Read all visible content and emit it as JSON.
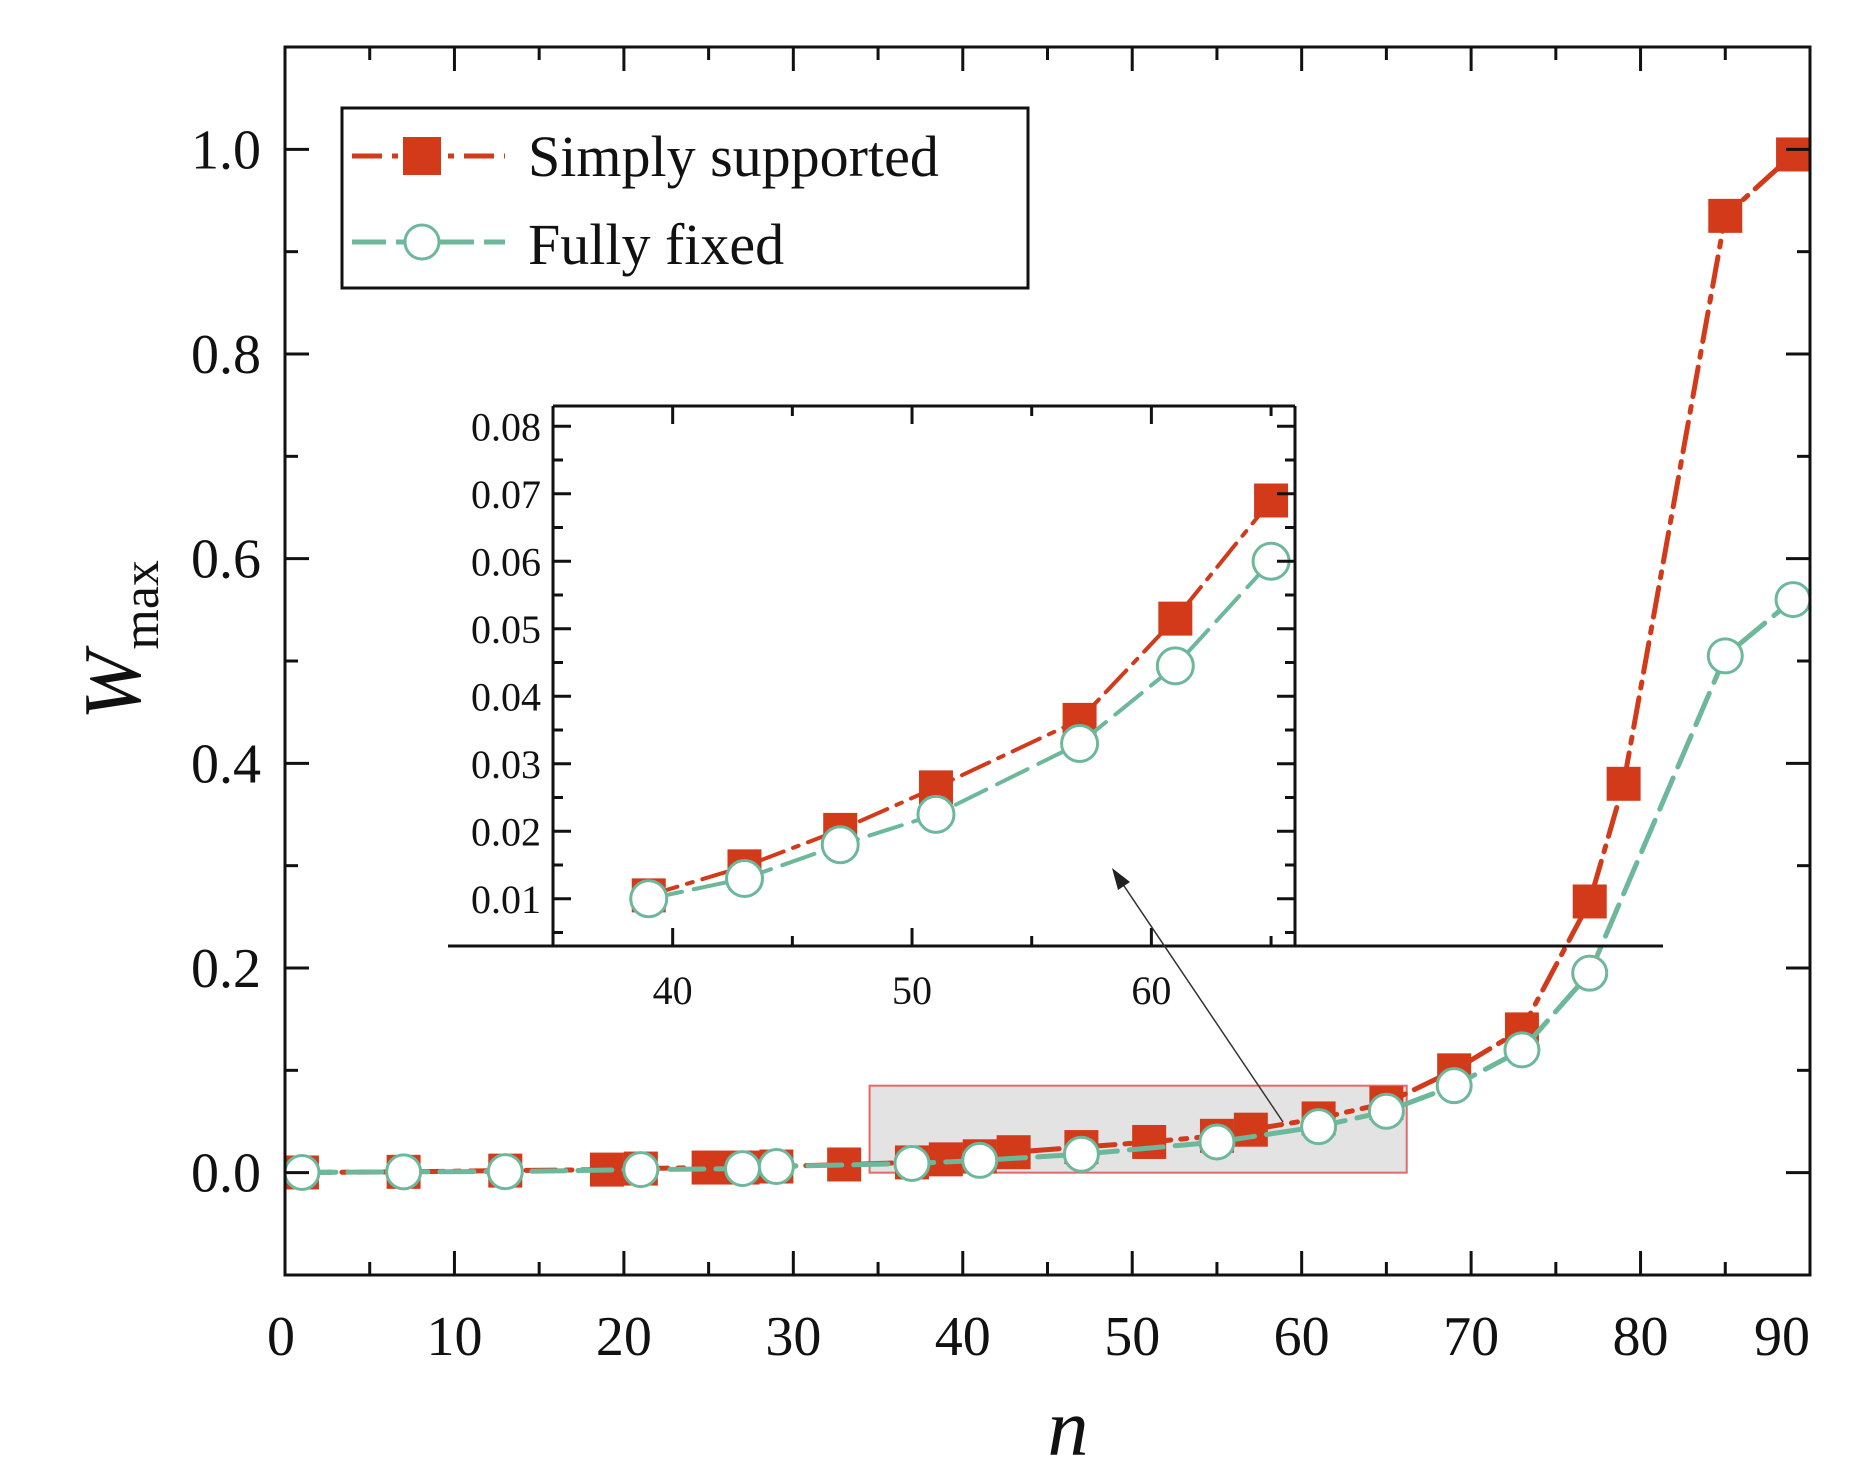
{
  "chart_data": [
    {
      "id": "main",
      "type": "line",
      "title": "",
      "xlabel": "n",
      "ylabel": "W",
      "ylabel_subscript": "max",
      "xlim": [
        0,
        90
      ],
      "ylim": [
        -0.1,
        1.1
      ],
      "xticks": [
        0,
        10,
        20,
        30,
        40,
        50,
        60,
        70,
        80,
        90
      ],
      "yticks": [
        0.0,
        0.2,
        0.4,
        0.6,
        0.8,
        1.0
      ],
      "xtick_labels": [
        "0",
        "10",
        "20",
        "30",
        "40",
        "50",
        "60",
        "70",
        "80",
        "90"
      ],
      "ytick_labels": [
        "0.0",
        "0.2",
        "0.4",
        "0.6",
        "0.8",
        "1.0"
      ],
      "grid": false,
      "legend_position": "top-left",
      "series": [
        {
          "name": "Simply supported",
          "color": "#d23a1a",
          "marker": "filled-square",
          "line_style": "dash-dot",
          "x": [
            1,
            7,
            13,
            19,
            21,
            25,
            27,
            29,
            33,
            37,
            39,
            41,
            43,
            47,
            51,
            55,
            57,
            61,
            65,
            69,
            73,
            77,
            79,
            85,
            89
          ],
          "y": [
            0.0002,
            0.0008,
            0.002,
            0.003,
            0.004,
            0.005,
            0.005,
            0.006,
            0.008,
            0.01,
            0.013,
            0.016,
            0.02,
            0.025,
            0.03,
            0.036,
            0.042,
            0.053,
            0.068,
            0.1,
            0.14,
            0.265,
            0.38,
            0.935,
            0.995
          ]
        },
        {
          "name": "Fully fixed",
          "color": "#6db89a",
          "marker": "open-circle",
          "line_style": "long-dash",
          "x": [
            1,
            7,
            13,
            21,
            27,
            29,
            37,
            41,
            47,
            55,
            61,
            65,
            69,
            73,
            77,
            85,
            89
          ],
          "y": [
            0.0002,
            0.0008,
            0.001,
            0.003,
            0.004,
            0.006,
            0.009,
            0.012,
            0.018,
            0.03,
            0.045,
            0.06,
            0.085,
            0.12,
            0.195,
            0.505,
            0.56
          ]
        }
      ],
      "zoom_region": {
        "x": [
          34.5,
          66.2
        ],
        "y": [
          0.0,
          0.085
        ]
      }
    },
    {
      "id": "inset",
      "type": "line",
      "title": "",
      "xlim": [
        35,
        66
      ],
      "ylim": [
        0.003,
        0.083
      ],
      "xticks": [
        40,
        50,
        60
      ],
      "yticks": [
        0.01,
        0.02,
        0.03,
        0.04,
        0.05,
        0.06,
        0.07,
        0.08
      ],
      "xtick_labels": [
        "40",
        "50",
        "60"
      ],
      "ytick_labels": [
        "0.01",
        "0.02",
        "0.03",
        "0.04",
        "0.05",
        "0.06",
        "0.07",
        "0.08"
      ],
      "grid": false,
      "series": [
        {
          "name": "Simply supported",
          "color": "#d23a1a",
          "marker": "filled-square",
          "line_style": "dash-dot",
          "x": [
            39,
            43,
            47,
            51,
            57,
            61,
            65
          ],
          "y": [
            0.0105,
            0.0148,
            0.0202,
            0.0265,
            0.0365,
            0.0515,
            0.069
          ]
        },
        {
          "name": "Fully fixed",
          "color": "#6db89a",
          "marker": "open-circle",
          "line_style": "long-dash",
          "x": [
            39,
            43,
            47,
            51,
            57,
            61,
            65
          ],
          "y": [
            0.01,
            0.013,
            0.018,
            0.0225,
            0.033,
            0.0445,
            0.06
          ]
        }
      ]
    }
  ]
}
